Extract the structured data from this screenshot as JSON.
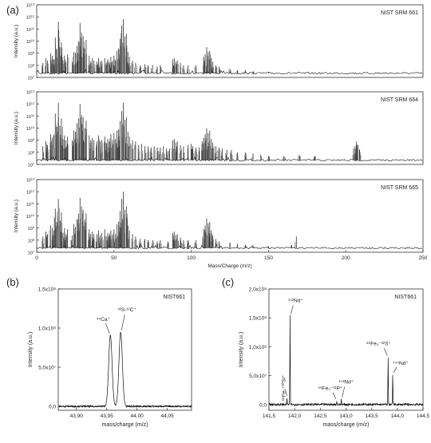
{
  "panels": {
    "a_label": "(a)",
    "b_label": "(b)",
    "c_label": "(c)"
  },
  "chart_data": [
    {
      "id": "a-top",
      "type": "line",
      "title": "NIST SRM 661",
      "ylabel": "Intensity (a.u.)",
      "xlabel": "",
      "xlim": [
        0,
        250
      ],
      "y_scale": "log",
      "y_ticks": [
        "10^7",
        "10^8",
        "10^9",
        "10^10",
        "10^11",
        "10^12",
        "10^13"
      ],
      "x_ticks": [],
      "peaks": [
        [
          4,
          8.2
        ],
        [
          6,
          8.6
        ],
        [
          7,
          8.4
        ],
        [
          9,
          9.0
        ],
        [
          10,
          8.8
        ],
        [
          11,
          8.5
        ],
        [
          12,
          10.3
        ],
        [
          13,
          9.3
        ],
        [
          14,
          11.6
        ],
        [
          15,
          9.5
        ],
        [
          16,
          9.9
        ],
        [
          17,
          8.4
        ],
        [
          18,
          8.8
        ],
        [
          19,
          8.3
        ],
        [
          20,
          8.9
        ],
        [
          23,
          8.3
        ],
        [
          24,
          9.1
        ],
        [
          25,
          9.0
        ],
        [
          26,
          9.6
        ],
        [
          27,
          10.0
        ],
        [
          28,
          11.5
        ],
        [
          29,
          10.7
        ],
        [
          30,
          10.4
        ],
        [
          31,
          9.4
        ],
        [
          32,
          10.1
        ],
        [
          34,
          8.8
        ],
        [
          35,
          8.3
        ],
        [
          36,
          8.6
        ],
        [
          37,
          8.4
        ],
        [
          39,
          8.3
        ],
        [
          40,
          8.6
        ],
        [
          41,
          8.3
        ],
        [
          42,
          8.4
        ],
        [
          44,
          8.6
        ],
        [
          45,
          8.2
        ],
        [
          46,
          8.5
        ],
        [
          47,
          8.3
        ],
        [
          48,
          8.7
        ],
        [
          49,
          8.3
        ],
        [
          50,
          8.8
        ],
        [
          51,
          8.4
        ],
        [
          52,
          9.2
        ],
        [
          53,
          9.4
        ],
        [
          54,
          10.2
        ],
        [
          55,
          11.3
        ],
        [
          56,
          11.8
        ],
        [
          57,
          10.4
        ],
        [
          58,
          10.6
        ],
        [
          59,
          9.1
        ],
        [
          60,
          8.7
        ],
        [
          62,
          8.4
        ],
        [
          64,
          8.2
        ],
        [
          67,
          8.0
        ],
        [
          70,
          8.1
        ],
        [
          72,
          8.0
        ],
        [
          75,
          8.0
        ],
        [
          78,
          7.9
        ],
        [
          80,
          8.0
        ],
        [
          88,
          8.5
        ],
        [
          89,
          8.6
        ],
        [
          90,
          8.3
        ],
        [
          91,
          8.4
        ],
        [
          93,
          8.2
        ],
        [
          95,
          8.0
        ],
        [
          98,
          8.0
        ],
        [
          103,
          8.0
        ],
        [
          108,
          8.7
        ],
        [
          109,
          8.9
        ],
        [
          110,
          9.5
        ],
        [
          111,
          9.1
        ],
        [
          112,
          9.2
        ],
        [
          113,
          8.6
        ],
        [
          114,
          8.3
        ],
        [
          116,
          8.0
        ],
        [
          118,
          7.9
        ],
        [
          125,
          7.7
        ],
        [
          130,
          7.6
        ],
        [
          135,
          7.6
        ],
        [
          140,
          7.5
        ],
        [
          150,
          7.4
        ]
      ]
    },
    {
      "id": "a-mid",
      "type": "line",
      "title": "NIST SRM 664",
      "ylabel": "Intensity (a.u.)",
      "xlabel": "",
      "xlim": [
        0,
        250
      ],
      "y_scale": "log",
      "y_ticks": [
        "10^7",
        "10^8",
        "10^9",
        "10^10",
        "10^11",
        "10^12",
        "10^13"
      ],
      "x_ticks": [],
      "peaks": [
        [
          4,
          8.5
        ],
        [
          6,
          8.9
        ],
        [
          7,
          8.6
        ],
        [
          9,
          9.5
        ],
        [
          10,
          9.2
        ],
        [
          11,
          9.4
        ],
        [
          12,
          11.2
        ],
        [
          13,
          10.1
        ],
        [
          14,
          12.1
        ],
        [
          15,
          10.2
        ],
        [
          16,
          10.8
        ],
        [
          17,
          9.1
        ],
        [
          18,
          9.4
        ],
        [
          19,
          9.0
        ],
        [
          20,
          9.3
        ],
        [
          23,
          9.0
        ],
        [
          24,
          9.8
        ],
        [
          25,
          9.7
        ],
        [
          26,
          10.4
        ],
        [
          27,
          10.8
        ],
        [
          28,
          12.0
        ],
        [
          29,
          11.1
        ],
        [
          30,
          10.9
        ],
        [
          31,
          10.0
        ],
        [
          32,
          10.6
        ],
        [
          34,
          9.4
        ],
        [
          35,
          9.0
        ],
        [
          36,
          9.2
        ],
        [
          37,
          9.0
        ],
        [
          39,
          8.9
        ],
        [
          40,
          9.4
        ],
        [
          41,
          8.9
        ],
        [
          42,
          9.0
        ],
        [
          44,
          9.3
        ],
        [
          45,
          8.8
        ],
        [
          46,
          9.1
        ],
        [
          47,
          8.9
        ],
        [
          48,
          9.5
        ],
        [
          49,
          9.0
        ],
        [
          50,
          9.6
        ],
        [
          51,
          9.1
        ],
        [
          52,
          9.8
        ],
        [
          53,
          9.9
        ],
        [
          54,
          10.6
        ],
        [
          55,
          11.4
        ],
        [
          56,
          12.1
        ],
        [
          57,
          10.7
        ],
        [
          58,
          10.9
        ],
        [
          59,
          9.7
        ],
        [
          60,
          9.3
        ],
        [
          62,
          9.0
        ],
        [
          64,
          8.9
        ],
        [
          66,
          8.6
        ],
        [
          68,
          8.7
        ],
        [
          70,
          8.5
        ],
        [
          72,
          8.5
        ],
        [
          74,
          8.4
        ],
        [
          76,
          8.5
        ],
        [
          78,
          8.4
        ],
        [
          80,
          8.4
        ],
        [
          82,
          8.5
        ],
        [
          84,
          8.3
        ],
        [
          86,
          8.3
        ],
        [
          88,
          9.0
        ],
        [
          89,
          9.1
        ],
        [
          90,
          8.8
        ],
        [
          91,
          8.9
        ],
        [
          93,
          8.6
        ],
        [
          95,
          8.5
        ],
        [
          98,
          8.6
        ],
        [
          100,
          8.7
        ],
        [
          101,
          8.5
        ],
        [
          103,
          8.4
        ],
        [
          105,
          8.4
        ],
        [
          107,
          8.9
        ],
        [
          108,
          9.2
        ],
        [
          109,
          9.5
        ],
        [
          110,
          10.0
        ],
        [
          111,
          9.6
        ],
        [
          112,
          9.8
        ],
        [
          113,
          9.1
        ],
        [
          114,
          8.8
        ],
        [
          116,
          8.5
        ],
        [
          118,
          8.4
        ],
        [
          120,
          8.3
        ],
        [
          123,
          8.2
        ],
        [
          126,
          8.2
        ],
        [
          130,
          8.0
        ],
        [
          135,
          8.0
        ],
        [
          140,
          7.9
        ],
        [
          145,
          7.8
        ],
        [
          150,
          7.7
        ],
        [
          160,
          7.7
        ],
        [
          170,
          7.8
        ],
        [
          180,
          7.7
        ],
        [
          205,
          8.3
        ],
        [
          206,
          8.5
        ],
        [
          207,
          8.9
        ],
        [
          208,
          8.6
        ],
        [
          209,
          8.2
        ]
      ]
    },
    {
      "id": "a-bot",
      "type": "line",
      "title": "NIST SRM 665",
      "ylabel": "Intensity (a.u.)",
      "xlabel": "Mass/Charge (m/z)",
      "xlim": [
        0,
        250
      ],
      "y_scale": "log",
      "y_ticks": [
        "10^7",
        "10^8",
        "10^9",
        "10^10",
        "10^11",
        "10^12",
        "10^13"
      ],
      "x_ticks": [
        "0",
        "50",
        "100",
        "150",
        "200",
        "250"
      ],
      "peaks": [
        [
          4,
          8.3
        ],
        [
          6,
          8.7
        ],
        [
          7,
          8.5
        ],
        [
          9,
          9.2
        ],
        [
          10,
          9.0
        ],
        [
          11,
          8.8
        ],
        [
          12,
          10.6
        ],
        [
          13,
          9.5
        ],
        [
          14,
          11.4
        ],
        [
          15,
          9.6
        ],
        [
          16,
          10.3
        ],
        [
          17,
          8.6
        ],
        [
          18,
          9.0
        ],
        [
          19,
          8.5
        ],
        [
          20,
          8.9
        ],
        [
          23,
          8.4
        ],
        [
          24,
          9.3
        ],
        [
          25,
          9.1
        ],
        [
          26,
          9.7
        ],
        [
          27,
          10.2
        ],
        [
          28,
          11.5
        ],
        [
          29,
          10.8
        ],
        [
          30,
          10.5
        ],
        [
          31,
          9.6
        ],
        [
          32,
          10.2
        ],
        [
          34,
          8.9
        ],
        [
          35,
          8.5
        ],
        [
          36,
          8.7
        ],
        [
          37,
          8.5
        ],
        [
          39,
          8.5
        ],
        [
          40,
          8.8
        ],
        [
          41,
          8.4
        ],
        [
          42,
          8.6
        ],
        [
          44,
          8.9
        ],
        [
          45,
          8.3
        ],
        [
          46,
          8.6
        ],
        [
          47,
          8.4
        ],
        [
          48,
          8.8
        ],
        [
          49,
          8.4
        ],
        [
          50,
          8.9
        ],
        [
          51,
          8.5
        ],
        [
          52,
          9.3
        ],
        [
          53,
          9.5
        ],
        [
          54,
          10.4
        ],
        [
          55,
          11.4
        ],
        [
          56,
          12.0
        ],
        [
          57,
          10.5
        ],
        [
          58,
          10.8
        ],
        [
          59,
          9.2
        ],
        [
          60,
          8.8
        ],
        [
          62,
          8.5
        ],
        [
          64,
          8.3
        ],
        [
          67,
          8.1
        ],
        [
          70,
          8.1
        ],
        [
          72,
          8.0
        ],
        [
          75,
          8.0
        ],
        [
          78,
          7.9
        ],
        [
          80,
          8.0
        ],
        [
          85,
          7.9
        ],
        [
          88,
          8.6
        ],
        [
          89,
          8.7
        ],
        [
          90,
          8.4
        ],
        [
          91,
          8.5
        ],
        [
          93,
          8.2
        ],
        [
          95,
          8.0
        ],
        [
          98,
          8.0
        ],
        [
          103,
          8.0
        ],
        [
          108,
          8.9
        ],
        [
          109,
          9.2
        ],
        [
          110,
          9.8
        ],
        [
          111,
          9.4
        ],
        [
          112,
          9.5
        ],
        [
          113,
          8.8
        ],
        [
          114,
          8.4
        ],
        [
          116,
          8.1
        ],
        [
          118,
          7.9
        ],
        [
          125,
          7.8
        ],
        [
          130,
          7.7
        ],
        [
          135,
          7.6
        ],
        [
          140,
          7.6
        ],
        [
          150,
          7.5
        ],
        [
          165,
          7.6
        ],
        [
          168,
          8.3
        ]
      ]
    },
    {
      "id": "b",
      "type": "line",
      "title": "NIST661",
      "xlabel": "mass/charge (m/z)",
      "ylabel": "Intensity (a.u.)",
      "xlim": [
        43.87,
        44.09
      ],
      "ylim": [
        -0.05,
        1.5
      ],
      "x_ticks": [
        "43,90",
        "43,95",
        "44,00",
        "44,05"
      ],
      "y_ticks": [
        "0,0",
        "5,0x10⁷",
        "1,0x10⁸",
        "1,5x10⁸"
      ],
      "series": [
        {
          "peaks": [
            {
              "x": 43.956,
              "y": 0.91
            },
            {
              "x": 43.973,
              "y": 0.95
            }
          ]
        }
      ],
      "annotations": [
        {
          "text": "⁴⁴Ca⁺",
          "x": 43.956,
          "y": 0.91
        },
        {
          "text": "³²S-¹²C⁺",
          "x": 43.973,
          "y": 0.95
        }
      ]
    },
    {
      "id": "c",
      "type": "line",
      "title": "NIST661",
      "xlabel": "mass/charge (m/z)",
      "ylabel": "Intensity (a.u.)",
      "xlim": [
        141.5,
        144.5
      ],
      "ylim": [
        -0.1,
        2.0
      ],
      "x_ticks": [
        "141,5",
        "142,0",
        "142,5",
        "143,0",
        "143,5",
        "144,0",
        "144,5"
      ],
      "y_ticks": [
        "0,0",
        "5,0x10⁷",
        "1,0x10⁸",
        "1,5x10⁸",
        "2,0x10⁸"
      ],
      "series": [
        {
          "peaks": [
            {
              "x": 141.85,
              "y": 0.12
            },
            {
              "x": 141.91,
              "y": 1.55
            },
            {
              "x": 142.82,
              "y": 0.07
            },
            {
              "x": 142.91,
              "y": 0.1
            },
            {
              "x": 143.82,
              "y": 0.82
            },
            {
              "x": 143.91,
              "y": 0.52
            }
          ]
        }
      ],
      "annotations": [
        {
          "text": "¹⁴²Nd⁺",
          "x": 141.91,
          "y": 1.55
        },
        {
          "text": "⁵⁶Fe₂⁺³⁰Si⁺",
          "x": 141.85,
          "y": 0.12
        },
        {
          "text": "⁵⁶Fe₂⁻³¹P⁺",
          "x": 142.82,
          "y": 0.07
        },
        {
          "text": "¹⁴³Nd⁺",
          "x": 142.91,
          "y": 0.1
        },
        {
          "text": "⁵⁶Fe₂⁻³²S⁺",
          "x": 143.82,
          "y": 0.82
        },
        {
          "text": "¹⁴⁴Nd⁺",
          "x": 143.91,
          "y": 0.52
        }
      ]
    }
  ]
}
